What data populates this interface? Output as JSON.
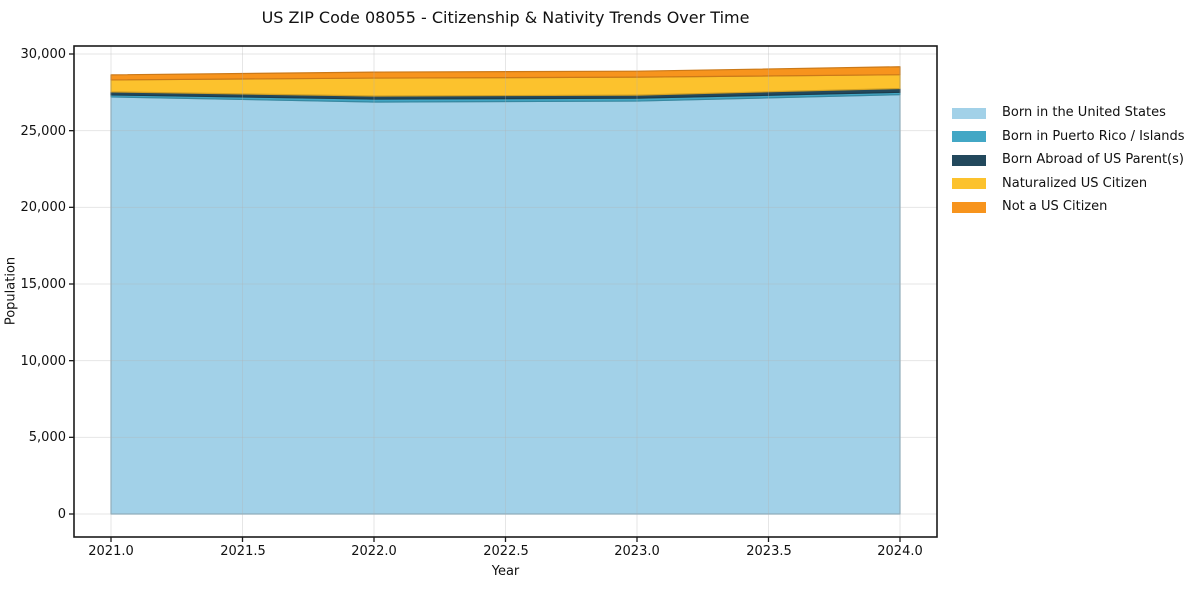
{
  "chart_data": {
    "type": "area",
    "stacked": true,
    "title": "US ZIP Code 08055 - Citizenship & Nativity Trends Over Time",
    "xlabel": "Year",
    "ylabel": "Population",
    "x": [
      2021,
      2022,
      2023,
      2024
    ],
    "series": [
      {
        "name": "Born in the United States",
        "color": "#a2d1e8",
        "values": [
          27200,
          26870,
          26930,
          27350
        ]
      },
      {
        "name": "Born in Puerto Rico / Islands",
        "color": "#42a7c5",
        "values": [
          130,
          190,
          190,
          150
        ]
      },
      {
        "name": "Born Abroad of US Parent(s)",
        "color": "#22485c",
        "values": [
          200,
          200,
          200,
          250
        ]
      },
      {
        "name": "Naturalized US Citizen",
        "color": "#fcc22d",
        "values": [
          780,
          1170,
          1170,
          900
        ]
      },
      {
        "name": "Not a US Citizen",
        "color": "#f7941d",
        "values": [
          330,
          390,
          390,
          520
        ]
      }
    ],
    "totals": [
      28640,
      28820,
      28880,
      29170
    ],
    "xlim": [
      2020.86,
      2024.14
    ],
    "ylim": [
      0,
      30000
    ],
    "xticks": {
      "values": [
        2021.0,
        2021.5,
        2022.0,
        2022.5,
        2023.0,
        2023.5,
        2024.0
      ],
      "labels": [
        "2021.0",
        "2021.5",
        "2022.0",
        "2022.5",
        "2023.0",
        "2023.5",
        "2024.0"
      ]
    },
    "yticks": {
      "values": [
        0,
        5000,
        10000,
        15000,
        20000,
        25000,
        30000
      ],
      "labels": [
        "0",
        "5,000",
        "10,000",
        "15,000",
        "20,000",
        "25,000",
        "30,000"
      ]
    },
    "grid": true,
    "legend_position": "right-outside-top",
    "spine_color": "#1a1a1a",
    "grid_color": "#b0b0b0",
    "text_color": "#111111"
  }
}
